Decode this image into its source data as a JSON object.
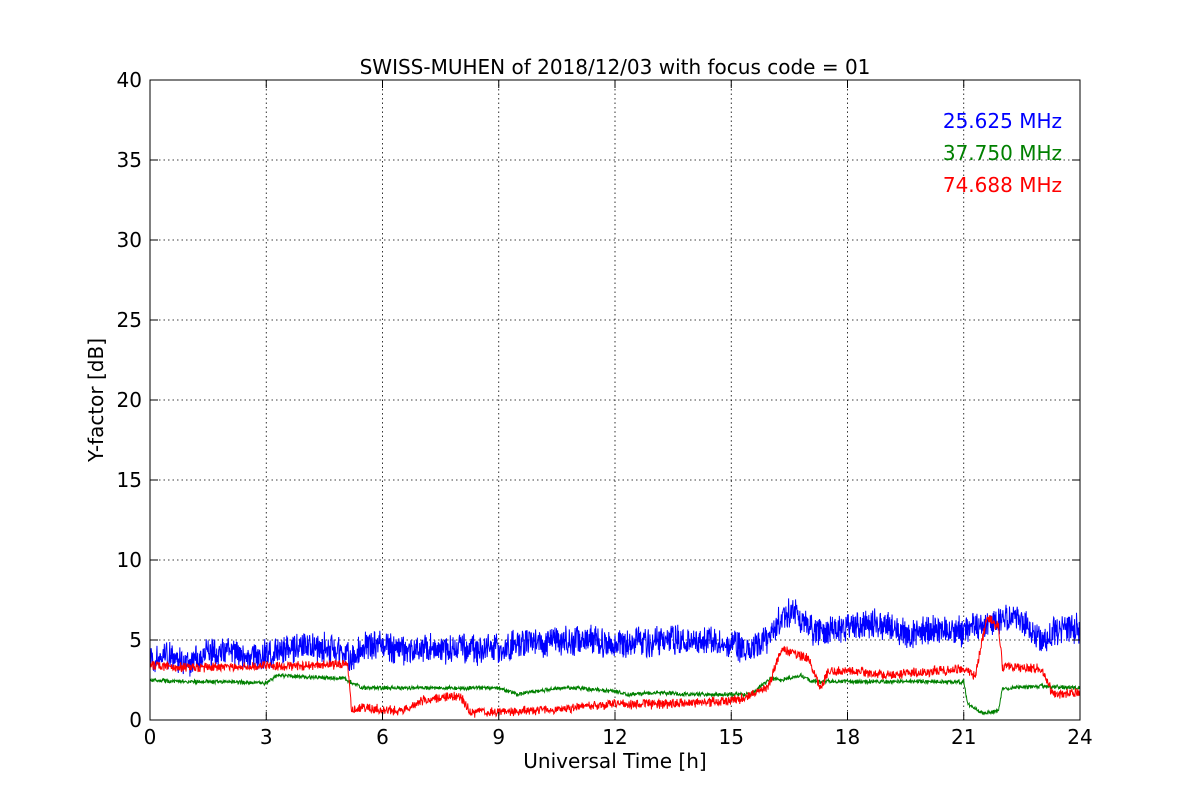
{
  "chart_data": {
    "type": "line",
    "title": "SWISS-MUHEN of 2018/12/03 with focus code = 01",
    "xlabel": "Universal Time [h]",
    "ylabel": "Y-factor [dB]",
    "xlim": [
      0,
      24
    ],
    "ylim": [
      0,
      40
    ],
    "xticks": [
      0,
      3,
      6,
      9,
      12,
      15,
      18,
      21,
      24
    ],
    "yticks": [
      0,
      5,
      10,
      15,
      20,
      25,
      30,
      35,
      40
    ],
    "grid": true,
    "legend_position": "top-right",
    "series": [
      {
        "name": "25.625 MHz",
        "color": "#0000ff",
        "noise": 1.1,
        "x": [
          0,
          0.5,
          1,
          1.5,
          2,
          2.5,
          3,
          3.5,
          4,
          4.5,
          5,
          5.2,
          5.5,
          6,
          6.5,
          7,
          7.5,
          8,
          8.5,
          9,
          9.5,
          10,
          10.5,
          11,
          11.5,
          12,
          12.5,
          13,
          13.5,
          14,
          14.5,
          15,
          15.5,
          16,
          16.3,
          16.6,
          17,
          17.2,
          17.5,
          18,
          18.5,
          19,
          19.5,
          20,
          20.5,
          21,
          21.5,
          22,
          22.5,
          23,
          23.5,
          24
        ],
        "y": [
          3.8,
          4.0,
          3.6,
          4.1,
          4.3,
          4.0,
          4.0,
          4.5,
          4.6,
          4.5,
          4.3,
          3.6,
          4.6,
          4.7,
          4.3,
          4.5,
          4.4,
          4.6,
          4.3,
          4.5,
          4.7,
          4.8,
          5.0,
          4.9,
          5.0,
          4.8,
          4.9,
          4.9,
          5.0,
          4.9,
          5.0,
          4.6,
          4.5,
          5.2,
          6.5,
          6.8,
          5.8,
          5.5,
          5.6,
          5.8,
          6.0,
          5.9,
          5.3,
          5.6,
          5.7,
          5.4,
          6.0,
          6.2,
          6.3,
          5.0,
          5.7,
          5.8
        ]
      },
      {
        "name": "37.750 MHz",
        "color": "#008000",
        "noise": 0.15,
        "x": [
          0,
          1,
          2,
          3,
          3.3,
          4,
          5,
          5.5,
          6,
          7,
          8,
          9,
          9.5,
          10,
          10.5,
          11,
          12,
          12.3,
          13,
          14,
          15,
          15.5,
          16,
          16.3,
          16.8,
          17,
          17.3,
          18,
          19,
          20,
          21,
          21.1,
          21.5,
          21.9,
          22,
          23,
          24
        ],
        "y": [
          2.5,
          2.4,
          2.4,
          2.3,
          2.8,
          2.7,
          2.6,
          2.0,
          2.0,
          2.0,
          2.0,
          2.0,
          1.6,
          1.8,
          2.0,
          2.0,
          1.8,
          1.6,
          1.7,
          1.6,
          1.6,
          1.6,
          2.6,
          2.5,
          2.8,
          2.5,
          2.4,
          2.4,
          2.4,
          2.4,
          2.4,
          1.0,
          0.4,
          0.6,
          2.0,
          2.1,
          2.0
        ]
      },
      {
        "name": "74.688 MHz",
        "color": "#ff0000",
        "noise": 0.35,
        "x": [
          0,
          1,
          2,
          3,
          4,
          5,
          5.1,
          5.2,
          5.5,
          6,
          6.5,
          7,
          7.5,
          8,
          8.3,
          8.5,
          9,
          10,
          11,
          12,
          13,
          14,
          15,
          15.5,
          15.9,
          16,
          16.3,
          16.6,
          17,
          17.3,
          17.5,
          18,
          19,
          20,
          21,
          21.3,
          21.6,
          21.9,
          22,
          23,
          23.3,
          24
        ],
        "y": [
          3.4,
          3.3,
          3.3,
          3.4,
          3.4,
          3.5,
          3.5,
          0.6,
          0.8,
          0.6,
          0.6,
          1.2,
          1.4,
          1.5,
          0.4,
          0.5,
          0.5,
          0.6,
          0.8,
          1.0,
          1.0,
          1.1,
          1.2,
          1.5,
          2.0,
          2.3,
          4.5,
          4.2,
          3.8,
          2.0,
          3.0,
          3.1,
          2.8,
          3.0,
          3.2,
          2.8,
          6.5,
          5.8,
          3.3,
          3.2,
          1.6,
          1.7
        ]
      }
    ]
  }
}
